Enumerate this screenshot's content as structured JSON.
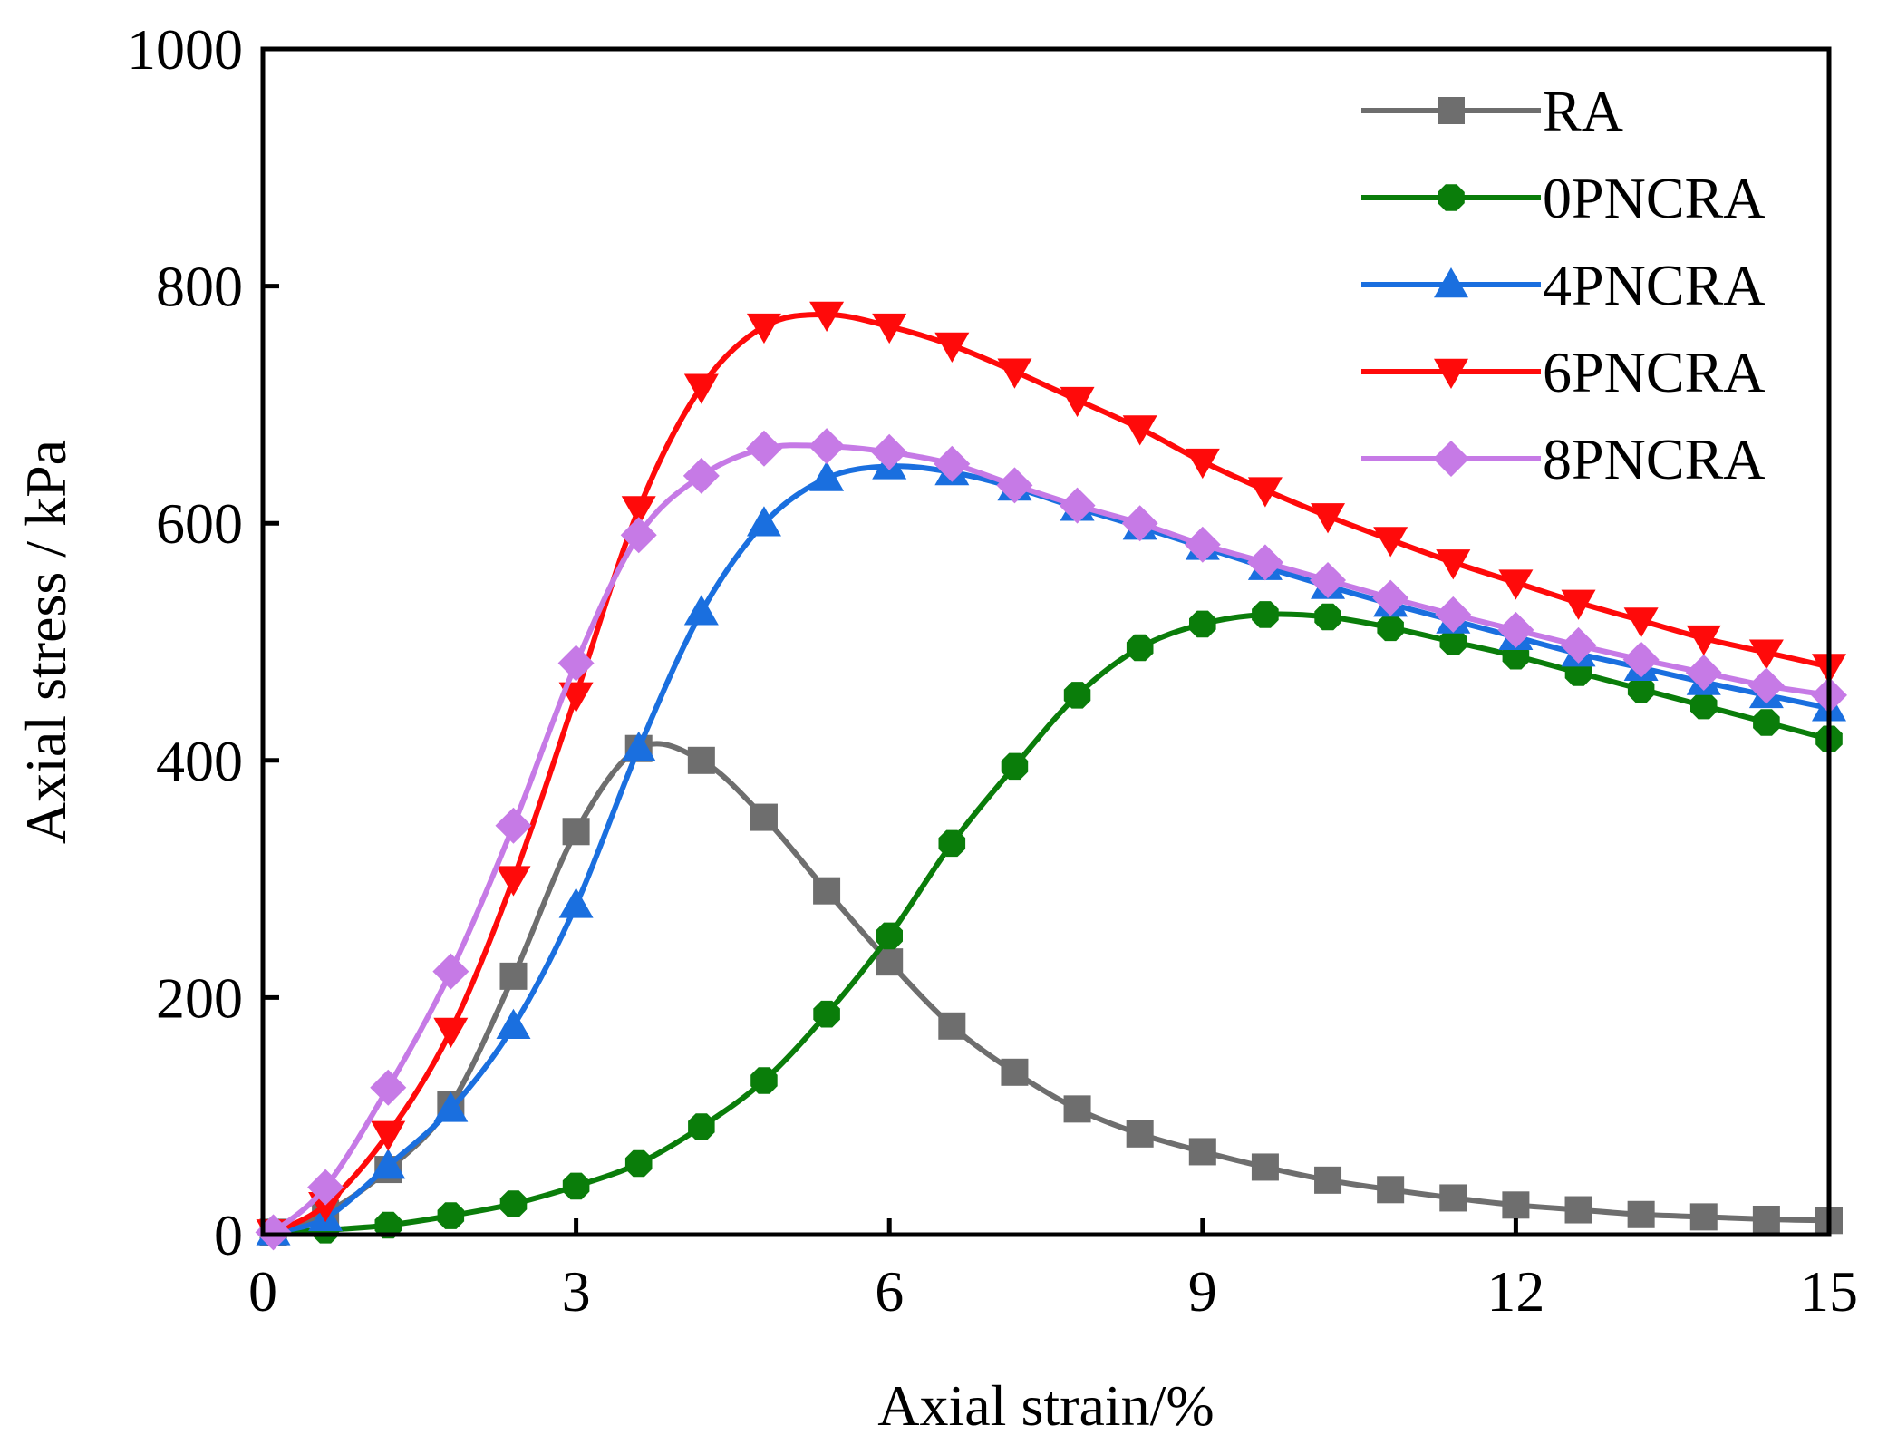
{
  "chart_data": {
    "type": "line",
    "title": "",
    "xlabel": "Axial strain/%",
    "ylabel": "Axial stress / kPa",
    "xlim": [
      0,
      15
    ],
    "ylim": [
      0,
      1000
    ],
    "xticks": [
      0,
      3,
      6,
      9,
      12,
      15
    ],
    "yticks": [
      0,
      200,
      400,
      600,
      800,
      1000
    ],
    "grid": false,
    "legend_position": "top-right",
    "series": [
      {
        "name": "RA",
        "color": "#6e6e6e",
        "marker": "square",
        "points": [
          [
            0.1,
            2
          ],
          [
            0.6,
            18
          ],
          [
            1.2,
            55
          ],
          [
            1.8,
            110
          ],
          [
            2.4,
            218
          ],
          [
            3.0,
            340
          ],
          [
            3.6,
            410
          ],
          [
            4.2,
            400
          ],
          [
            4.8,
            352
          ],
          [
            5.4,
            290
          ],
          [
            6.0,
            230
          ],
          [
            6.6,
            176
          ],
          [
            7.2,
            137
          ],
          [
            7.8,
            106
          ],
          [
            8.4,
            85
          ],
          [
            9.0,
            70
          ],
          [
            9.6,
            57
          ],
          [
            10.2,
            46
          ],
          [
            10.8,
            38
          ],
          [
            11.4,
            31
          ],
          [
            12.0,
            25
          ],
          [
            12.6,
            21
          ],
          [
            13.2,
            17
          ],
          [
            13.8,
            15
          ],
          [
            14.4,
            13
          ],
          [
            15.0,
            12
          ]
        ]
      },
      {
        "name": "0PNCRA",
        "color": "#0a7d0a",
        "marker": "octagon",
        "points": [
          [
            0.1,
            2
          ],
          [
            0.6,
            4
          ],
          [
            1.2,
            8
          ],
          [
            1.8,
            16
          ],
          [
            2.4,
            26
          ],
          [
            3.0,
            41
          ],
          [
            3.6,
            60
          ],
          [
            4.2,
            91
          ],
          [
            4.8,
            130
          ],
          [
            5.4,
            186
          ],
          [
            6.0,
            252
          ],
          [
            6.6,
            330
          ],
          [
            7.2,
            395
          ],
          [
            7.8,
            455
          ],
          [
            8.4,
            495
          ],
          [
            9.0,
            515
          ],
          [
            9.6,
            523
          ],
          [
            10.2,
            521
          ],
          [
            10.8,
            512
          ],
          [
            11.4,
            500
          ],
          [
            12.0,
            488
          ],
          [
            12.6,
            474
          ],
          [
            13.2,
            460
          ],
          [
            13.8,
            446
          ],
          [
            14.4,
            432
          ],
          [
            15.0,
            418
          ]
        ]
      },
      {
        "name": "4PNCRA",
        "color": "#1a6fdf",
        "marker": "triangle-up",
        "points": [
          [
            0.1,
            2
          ],
          [
            0.6,
            14
          ],
          [
            1.2,
            58
          ],
          [
            1.8,
            106
          ],
          [
            2.4,
            176
          ],
          [
            3.0,
            278
          ],
          [
            3.6,
            410
          ],
          [
            4.2,
            525
          ],
          [
            4.8,
            600
          ],
          [
            5.4,
            638
          ],
          [
            6.0,
            648
          ],
          [
            6.6,
            643
          ],
          [
            7.2,
            630
          ],
          [
            7.8,
            613
          ],
          [
            8.4,
            597
          ],
          [
            9.0,
            580
          ],
          [
            9.6,
            563
          ],
          [
            10.2,
            547
          ],
          [
            10.8,
            532
          ],
          [
            11.4,
            518
          ],
          [
            12.0,
            504
          ],
          [
            12.6,
            490
          ],
          [
            13.2,
            478
          ],
          [
            13.8,
            466
          ],
          [
            14.4,
            455
          ],
          [
            15.0,
            444
          ]
        ]
      },
      {
        "name": "6PNCRA",
        "color": "#ff0a0a",
        "marker": "triangle-down",
        "points": [
          [
            0.1,
            2
          ],
          [
            0.6,
            25
          ],
          [
            1.2,
            85
          ],
          [
            1.8,
            172
          ],
          [
            2.4,
            300
          ],
          [
            3.0,
            455
          ],
          [
            3.6,
            612
          ],
          [
            4.2,
            715
          ],
          [
            4.8,
            766
          ],
          [
            5.4,
            776
          ],
          [
            6.0,
            766
          ],
          [
            6.6,
            750
          ],
          [
            7.2,
            728
          ],
          [
            7.8,
            704
          ],
          [
            8.4,
            680
          ],
          [
            9.0,
            652
          ],
          [
            9.6,
            628
          ],
          [
            10.2,
            606
          ],
          [
            10.8,
            586
          ],
          [
            11.4,
            567
          ],
          [
            12.0,
            550
          ],
          [
            12.6,
            533
          ],
          [
            13.2,
            518
          ],
          [
            13.8,
            503
          ],
          [
            14.4,
            491
          ],
          [
            15.0,
            479
          ]
        ]
      },
      {
        "name": "8PNCRA",
        "color": "#c67ae6",
        "marker": "diamond",
        "points": [
          [
            0.1,
            2
          ],
          [
            0.6,
            40
          ],
          [
            1.2,
            124
          ],
          [
            1.8,
            222
          ],
          [
            2.4,
            345
          ],
          [
            3.0,
            482
          ],
          [
            3.6,
            590
          ],
          [
            4.2,
            640
          ],
          [
            4.8,
            663
          ],
          [
            5.4,
            665
          ],
          [
            6.0,
            660
          ],
          [
            6.6,
            650
          ],
          [
            7.2,
            632
          ],
          [
            7.8,
            615
          ],
          [
            8.4,
            600
          ],
          [
            9.0,
            582
          ],
          [
            9.6,
            567
          ],
          [
            10.2,
            552
          ],
          [
            10.8,
            537
          ],
          [
            11.4,
            523
          ],
          [
            12.0,
            510
          ],
          [
            12.6,
            497
          ],
          [
            13.2,
            485
          ],
          [
            13.8,
            474
          ],
          [
            14.4,
            463
          ],
          [
            15.0,
            455
          ]
        ]
      }
    ]
  }
}
